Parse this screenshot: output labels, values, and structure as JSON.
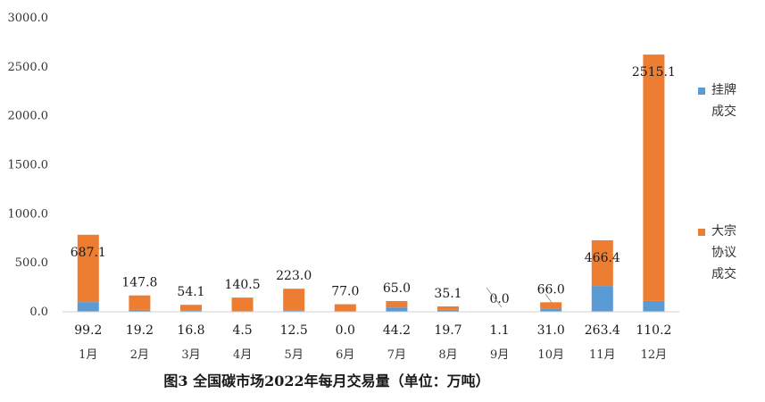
{
  "chart_data": {
    "type": "bar",
    "stacked": true,
    "title": "图3   全国碳市场2022年每月交易量（单位：万吨）",
    "categories": [
      "1月",
      "2月",
      "3月",
      "4月",
      "5月",
      "6月",
      "7月",
      "8月",
      "9月",
      "10月",
      "11月",
      "12月"
    ],
    "series": [
      {
        "name": "挂牌成交",
        "color": "#5B9BD5",
        "values": [
          99.2,
          19.2,
          16.8,
          4.5,
          12.5,
          0.0,
          44.2,
          19.7,
          1.1,
          31.0,
          263.4,
          110.2
        ],
        "labels": [
          "99.2",
          "19.2",
          "16.8",
          "4.5",
          "12.5",
          "0.0",
          "44.2",
          "19.7",
          "1.1",
          "31.0",
          "263.4",
          "110.2"
        ]
      },
      {
        "name": "大宗协议成交",
        "color": "#ED7D31",
        "values": [
          687.1,
          147.8,
          54.1,
          140.5,
          223.0,
          77.0,
          65.0,
          35.1,
          0.0,
          66.0,
          466.4,
          2515.1
        ],
        "labels": [
          "687.1",
          "147.8",
          "54.1",
          "140.5",
          "223.0",
          "77.0",
          "65.0",
          "35.1",
          "0.0",
          "66.0",
          "466.4",
          "2515.1"
        ]
      }
    ],
    "ylim": [
      0,
      3000
    ],
    "yticks": [
      "0.0",
      "500.0",
      "1000.0",
      "1500.0",
      "2000.0",
      "2500.0",
      "3000.0"
    ],
    "grid": false,
    "legend": {
      "position": "right",
      "entries": [
        {
          "lines": [
            "挂牌",
            "成交"
          ],
          "color": "#5B9BD5"
        },
        {
          "lines": [
            "大宗",
            "协议",
            "成交"
          ],
          "color": "#ED7D31"
        }
      ]
    }
  }
}
